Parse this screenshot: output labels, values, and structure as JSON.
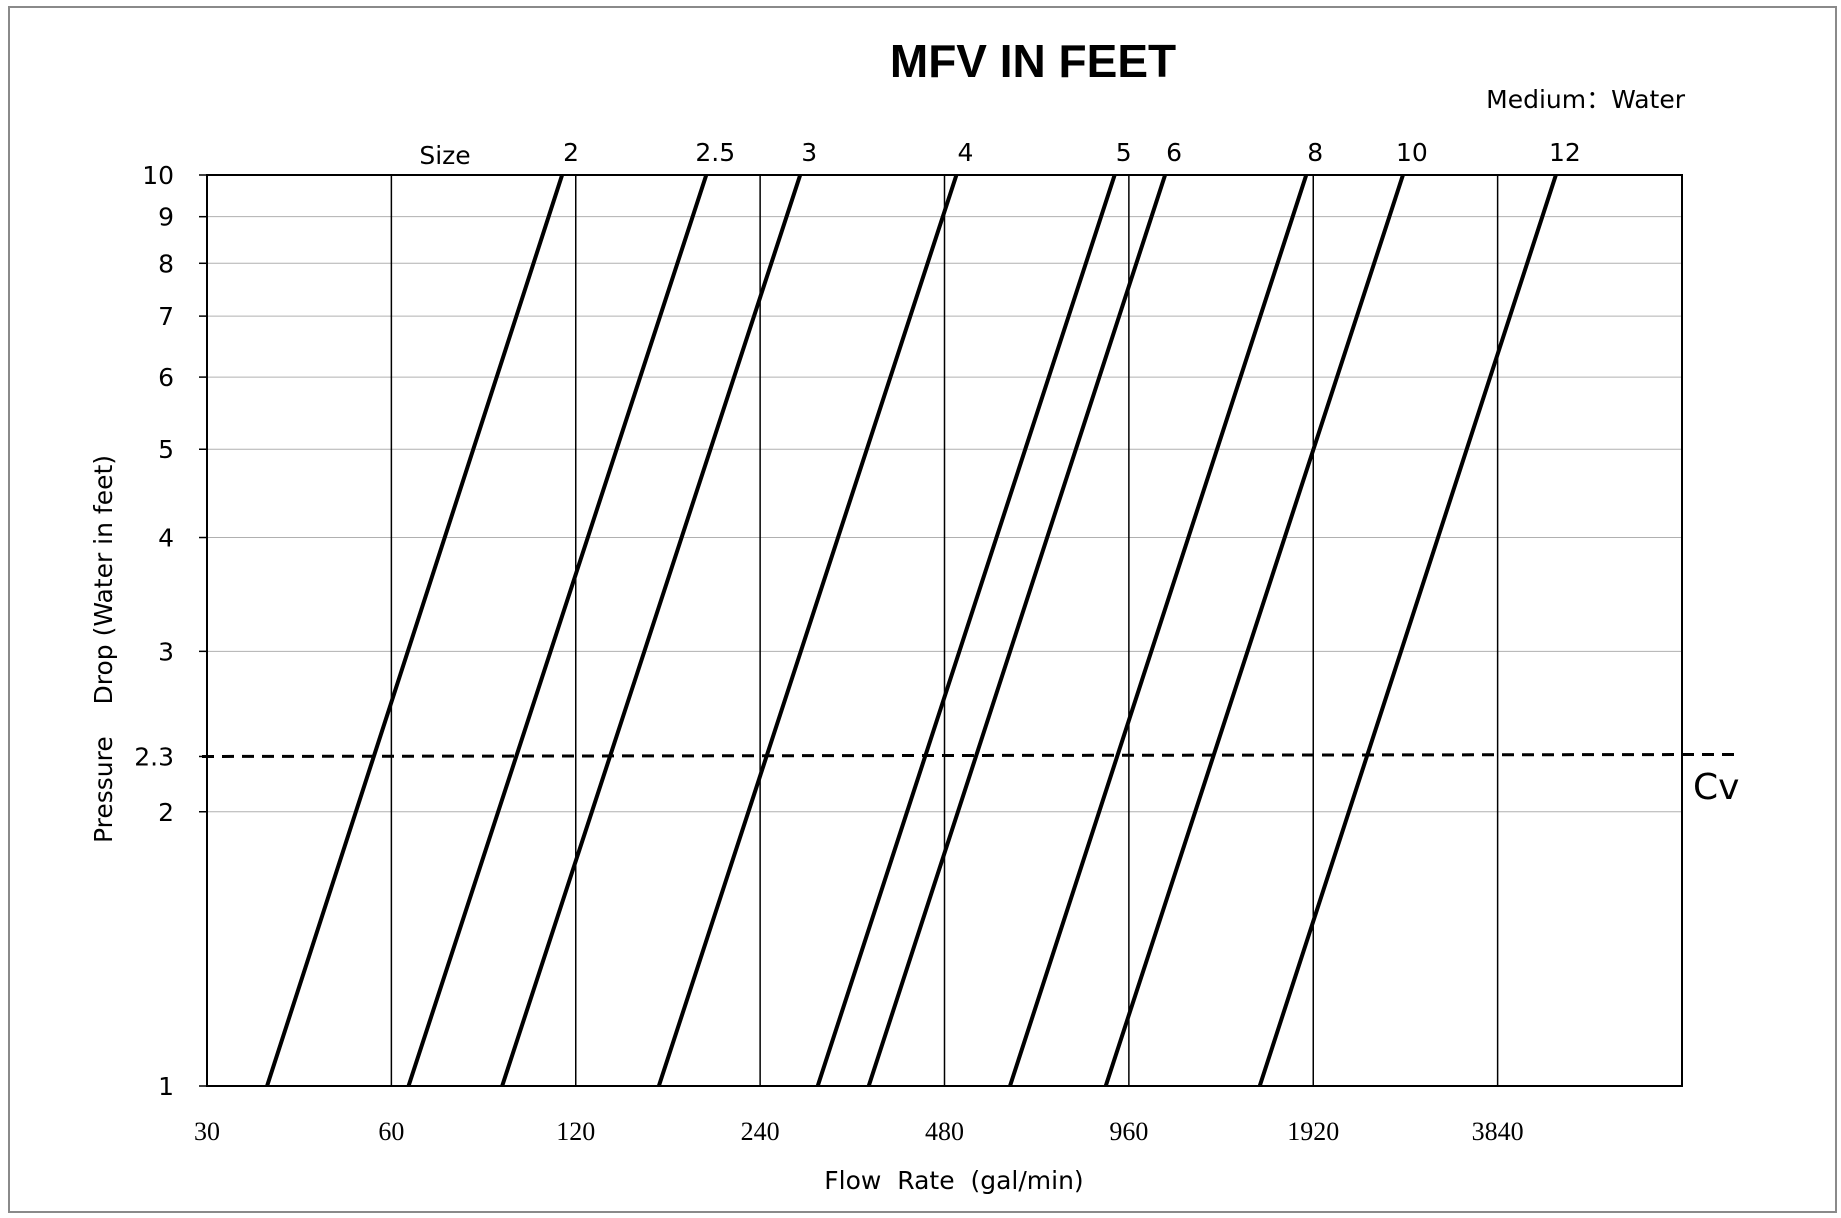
{
  "chart_data": {
    "type": "line",
    "title": "MFV IN FEET",
    "subtitle": "Medium：Water",
    "xlabel": "Flow  Rate  (gal/min)",
    "ylabel": "Pressure    Drop (Water in feet)",
    "x_scale": "log2",
    "y_scale": "log",
    "xlim": [
      30,
      7680
    ],
    "ylim": [
      1,
      10
    ],
    "x_ticks": [
      "30",
      "60",
      "120",
      "240",
      "480",
      "960",
      "1920",
      "3840"
    ],
    "y_ticks": [
      "1",
      "2",
      "2.3",
      "3",
      "4",
      "5",
      "6",
      "7",
      "8",
      "9",
      "10"
    ],
    "grid": true,
    "size_header": "Size",
    "reference_line": {
      "y": 2.3,
      "label": "Cv",
      "style": "dashed"
    },
    "series": [
      {
        "name": "2",
        "points": [
          [
            37.6,
            1
          ],
          [
            114,
            10
          ]
        ]
      },
      {
        "name": "2.5",
        "points": [
          [
            64,
            1
          ],
          [
            196,
            10
          ]
        ]
      },
      {
        "name": "3",
        "points": [
          [
            91,
            1
          ],
          [
            279,
            10
          ]
        ]
      },
      {
        "name": "4",
        "points": [
          [
            164,
            1
          ],
          [
            502,
            10
          ]
        ]
      },
      {
        "name": "5",
        "points": [
          [
            298,
            1
          ],
          [
            910,
            10
          ]
        ]
      },
      {
        "name": "6",
        "points": [
          [
            361,
            1
          ],
          [
            1100,
            10
          ]
        ]
      },
      {
        "name": "8",
        "points": [
          [
            614,
            1
          ],
          [
            1870,
            10
          ]
        ]
      },
      {
        "name": "10",
        "points": [
          [
            880,
            1
          ],
          [
            2690,
            10
          ]
        ]
      },
      {
        "name": "12",
        "points": [
          [
            1570,
            1
          ],
          [
            4780,
            10
          ]
        ]
      }
    ]
  }
}
